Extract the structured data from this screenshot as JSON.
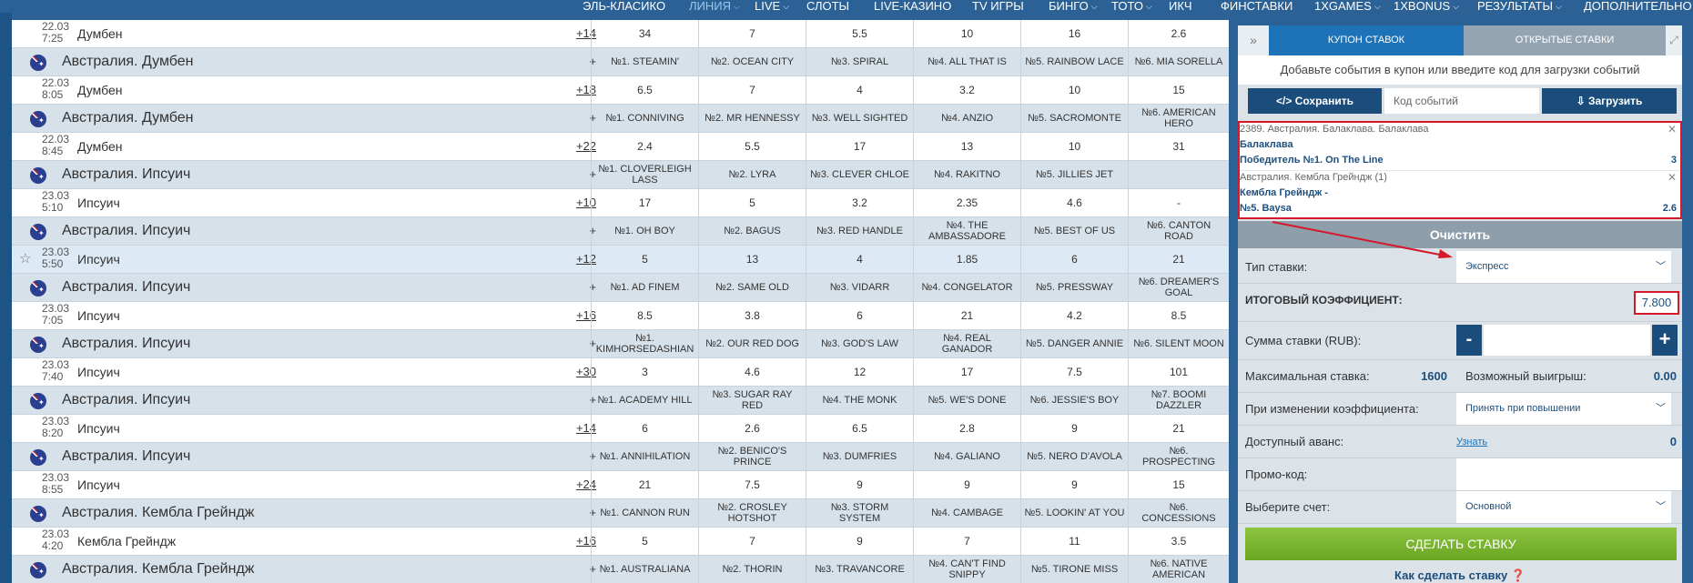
{
  "nav": [
    {
      "label": "ЭЛЬ-КЛАСИКО",
      "chev": false,
      "active": false
    },
    {
      "label": "ЛИНИЯ",
      "chev": true,
      "active": true
    },
    {
      "label": "LIVE",
      "chev": true,
      "active": false
    },
    {
      "label": "СЛОТЫ",
      "chev": false,
      "active": false
    },
    {
      "label": "LIVE-КАЗИНО",
      "chev": false,
      "active": false
    },
    {
      "label": "TV ИГРЫ",
      "chev": false,
      "active": false
    },
    {
      "label": "БИНГО",
      "chev": true,
      "active": false
    },
    {
      "label": "ТОТО",
      "chev": true,
      "active": false
    },
    {
      "label": "ИКЧ",
      "chev": false,
      "active": false
    },
    {
      "label": "ФИНСТАВКИ",
      "chev": false,
      "active": false
    },
    {
      "label": "1XGAMES",
      "chev": true,
      "active": false
    },
    {
      "label": "1XBONUS",
      "chev": true,
      "active": false
    },
    {
      "label": "РЕЗУЛЬТАТЫ",
      "chev": true,
      "active": false
    },
    {
      "label": "ДОПОЛНИТЕЛЬНО",
      "chev": true,
      "active": false
    }
  ],
  "rows": [
    {
      "kind": "ev",
      "date": "22.03",
      "time": "7:25",
      "name": "Думбен",
      "more": "+14",
      "cells": [
        "34",
        "7",
        "5.5",
        "10",
        "16",
        "2.6"
      ]
    },
    {
      "kind": "hdr",
      "league": "Австралия. Думбен",
      "more": "+",
      "cells": [
        "№1. STEAMIN'",
        "№2. OCEAN CITY",
        "№3. SPIRAL",
        "№4. ALL THAT IS",
        "№5. RAINBOW LACE",
        "№6. MIA SORELLA"
      ]
    },
    {
      "kind": "ev",
      "date": "22.03",
      "time": "8:05",
      "name": "Думбен",
      "more": "+18",
      "cells": [
        "6.5",
        "7",
        "4",
        "3.2",
        "10",
        "15"
      ]
    },
    {
      "kind": "hdr",
      "league": "Австралия. Думбен",
      "more": "+",
      "cells": [
        "№1. CONNIVING",
        "№2. MR HENNESSY",
        "№3. WELL SIGHTED",
        "№4. ANZIO",
        "№5. SACROMONTE",
        "№6. AMERICAN HERO"
      ]
    },
    {
      "kind": "ev",
      "date": "22.03",
      "time": "8:45",
      "name": "Думбен",
      "more": "+22",
      "cells": [
        "2.4",
        "5.5",
        "17",
        "13",
        "10",
        "31"
      ]
    },
    {
      "kind": "hdr",
      "league": "Австралия. Ипсуич",
      "more": "+",
      "cells": [
        "№1. CLOVERLEIGH LASS",
        "№2. LYRA",
        "№3. CLEVER CHLOE",
        "№4. RAKITNO",
        "№5. JILLIES JET",
        ""
      ]
    },
    {
      "kind": "ev",
      "date": "23.03",
      "time": "5:10",
      "name": "Ипсуич",
      "more": "+10",
      "cells": [
        "17",
        "5",
        "3.2",
        "2.35",
        "4.6",
        "-"
      ]
    },
    {
      "kind": "hdr",
      "league": "Австралия. Ипсуич",
      "more": "+",
      "cells": [
        "№1. OH BOY",
        "№2. BAGUS",
        "№3. RED HANDLE",
        "№4. THE AMBASSADORE",
        "№5. BEST OF US",
        "№6. CANTON ROAD"
      ]
    },
    {
      "kind": "ev",
      "date": "23.03",
      "time": "5:50",
      "name": "Ипсуич",
      "more": "+12",
      "cells": [
        "5",
        "13",
        "4",
        "1.85",
        "6",
        "21"
      ],
      "highlight": true,
      "star": true
    },
    {
      "kind": "hdr",
      "league": "Австралия. Ипсуич",
      "more": "+",
      "cells": [
        "№1. AD FINEM",
        "№2. SAME OLD",
        "№3. VIDARR",
        "№4. CONGELATOR",
        "№5. PRESSWAY",
        "№6. DREAMER'S GOAL"
      ]
    },
    {
      "kind": "ev",
      "date": "23.03",
      "time": "7:05",
      "name": "Ипсуич",
      "more": "+16",
      "cells": [
        "8.5",
        "3.8",
        "6",
        "21",
        "4.2",
        "8.5"
      ]
    },
    {
      "kind": "hdr",
      "league": "Австралия. Ипсуич",
      "more": "+",
      "cells": [
        "№1. KIMHORSEDASHIAN",
        "№2. OUR RED DOG",
        "№3. GOD'S LAW",
        "№4. REAL GANADOR",
        "№5. DANGER ANNIE",
        "№6. SILENT MOON"
      ]
    },
    {
      "kind": "ev",
      "date": "23.03",
      "time": "7:40",
      "name": "Ипсуич",
      "more": "+30",
      "cells": [
        "3",
        "4.6",
        "12",
        "17",
        "7.5",
        "101"
      ]
    },
    {
      "kind": "hdr",
      "league": "Австралия. Ипсуич",
      "more": "+",
      "cells": [
        "№1. ACADEMY HILL",
        "№3. SUGAR RAY RED",
        "№4. THE MONK",
        "№5. WE'S DONE",
        "№6. JESSIE'S BOY",
        "№7. BOOMI DAZZLER"
      ]
    },
    {
      "kind": "ev",
      "date": "23.03",
      "time": "8:20",
      "name": "Ипсуич",
      "more": "+14",
      "cells": [
        "6",
        "2.6",
        "6.5",
        "2.8",
        "9",
        "21"
      ]
    },
    {
      "kind": "hdr",
      "league": "Австралия. Ипсуич",
      "more": "+",
      "cells": [
        "№1. ANNIHILATION",
        "№2. BENICO'S PRINCE",
        "№3. DUMFRIES",
        "№4. GALIANO",
        "№5. NERO D'AVOLA",
        "№6. PROSPECTING"
      ]
    },
    {
      "kind": "ev",
      "date": "23.03",
      "time": "8:55",
      "name": "Ипсуич",
      "more": "+24",
      "cells": [
        "21",
        "7.5",
        "9",
        "9",
        "9",
        "15"
      ]
    },
    {
      "kind": "hdr",
      "league": "Австралия. Кембла Грейндж",
      "more": "+",
      "cells": [
        "№1. CANNON RUN",
        "№2. CROSLEY HOTSHOT",
        "№3. STORM SYSTEM",
        "№4. CAMBAGE",
        "№5. LOOKIN' AT YOU",
        "№6. CONCESSIONS"
      ]
    },
    {
      "kind": "ev",
      "date": "23.03",
      "time": "4:20",
      "name": "Кембла Грейндж",
      "more": "+16",
      "cells": [
        "5",
        "7",
        "9",
        "7",
        "11",
        "3.5"
      ]
    },
    {
      "kind": "hdr",
      "league": "Австралия. Кембла Грейндж",
      "more": "+",
      "cells": [
        "№1. AUSTRALIANA",
        "№2. THORIN",
        "№3. TRAVANCORE",
        "№4. CAN'T FIND SNIPPY",
        "№5. TIRONE MISS",
        "№6. NATIVE AMERICAN"
      ]
    }
  ],
  "coupon": {
    "collapse_icon": "»",
    "tab_active": "КУПОН СТАВОК",
    "tab_inactive": "ОТКРЫТЫЕ СТАВКИ",
    "hint": "Добавьте события в купон или введите код для загрузки событий",
    "save_label": "</> Сохранить",
    "code_placeholder": "Код событий",
    "load_label": "⇩ Загрузить",
    "bets": [
      {
        "title": "2389. Австралия. Балаклава. Балаклава",
        "event": "Балаклава",
        "pick": "Победитель №1. On The Line",
        "odd": "3"
      },
      {
        "title": "Австралия. Кембла Грейндж (1)",
        "event": "Кембла Грейндж -",
        "pick": "№5. Baysa",
        "odd": "2.6"
      }
    ],
    "clear_label": "Очистить",
    "bet_type_label": "Тип ставки:",
    "bet_type_value": "Экспресс",
    "total_coef_label": "ИТОГОВЫЙ КОЭФФИЦИЕНТ:",
    "total_coef_value": "7.800",
    "stake_label": "Сумма ставки (RUB):",
    "max_stake_label": "Максимальная ставка:",
    "max_stake_value": "1600",
    "possible_win_label": "Возможный выигрыш:",
    "possible_win_value": "0.00",
    "odds_change_label": "При изменении коэффициента:",
    "odds_change_value": "Принять при повышении",
    "advance_label": "Доступный аванс:",
    "advance_link": "Узнать",
    "advance_value": "0",
    "promo_label": "Промо-код:",
    "account_label": "Выберите счет:",
    "account_value": "Основной",
    "place_bet": "СДЕЛАТЬ СТАВКУ",
    "howto": "Как сделать ставку ❓"
  },
  "colors": {
    "accent_red": "#d6182b",
    "nav_blue": "#2b6194",
    "green": "#7cb832"
  }
}
